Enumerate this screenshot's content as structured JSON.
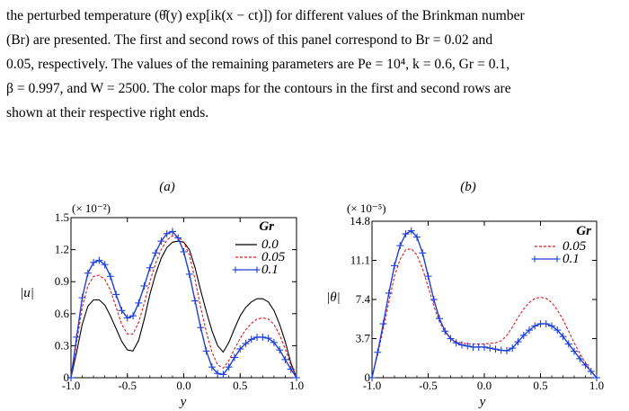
{
  "caption": {
    "lines": [
      "the perturbed temperature (θ̂(y) exp[ik(x − ct)]) for different values of the Brinkman number",
      "(Br) are presented. The first and second rows of this panel correspond to Br = 0.02 and",
      "0.05, respectively. The values of the remaining parameters are Pe = 10⁴, k = 0.6, Gr = 0.1,",
      "β = 0.997, and W = 2500. The color maps for the contours in the first and second rows are",
      "shown at their respective right ends."
    ]
  },
  "panels": {
    "a": {
      "tag": "(a)",
      "ylabel": "|u|",
      "xlabel": "y",
      "multiplier": "(× 10⁻²)",
      "legend_title": "Gr"
    },
    "b": {
      "tag": "(b)",
      "ylabel": "|θ|",
      "xlabel": "y",
      "multiplier": "(× 10⁻⁵)",
      "legend_title": "Gr"
    }
  },
  "chart_data": [
    {
      "type": "line",
      "title": "(a)",
      "xlabel": "y",
      "ylabel": "|u|",
      "y_multiplier": "(× 10⁻²)",
      "xlim": [
        -1.0,
        1.0
      ],
      "ylim": [
        0,
        1.5
      ],
      "xticks": [
        "-1.0",
        "-0.5",
        "0.0",
        "0.5",
        "1.0"
      ],
      "yticks": [
        "0",
        "0.3",
        "0.6",
        "0.9",
        "1.2",
        "1.5"
      ],
      "legend_title": "Gr",
      "legend_position": "top-right",
      "x": [
        -1.0,
        -0.95,
        -0.9,
        -0.85,
        -0.8,
        -0.75,
        -0.7,
        -0.65,
        -0.6,
        -0.55,
        -0.5,
        -0.45,
        -0.4,
        -0.35,
        -0.3,
        -0.25,
        -0.2,
        -0.15,
        -0.1,
        -0.05,
        0.0,
        0.05,
        0.1,
        0.15,
        0.2,
        0.25,
        0.3,
        0.35,
        0.4,
        0.45,
        0.5,
        0.55,
        0.6,
        0.65,
        0.7,
        0.75,
        0.8,
        0.85,
        0.9,
        0.95,
        1.0
      ],
      "series": [
        {
          "name": "0.0",
          "color": "#000000",
          "style": "solid",
          "values": [
            0.0,
            0.24,
            0.5,
            0.67,
            0.73,
            0.73,
            0.68,
            0.58,
            0.46,
            0.34,
            0.26,
            0.25,
            0.35,
            0.55,
            0.78,
            0.97,
            1.12,
            1.22,
            1.27,
            1.28,
            1.27,
            1.2,
            1.03,
            0.82,
            0.62,
            0.44,
            0.3,
            0.24,
            0.33,
            0.46,
            0.58,
            0.66,
            0.71,
            0.74,
            0.74,
            0.71,
            0.63,
            0.5,
            0.34,
            0.14,
            0.0
          ]
        },
        {
          "name": "0.05",
          "color": "#e8141e",
          "style": "dashed",
          "values": [
            0.0,
            0.33,
            0.66,
            0.86,
            0.95,
            0.96,
            0.92,
            0.82,
            0.66,
            0.5,
            0.41,
            0.41,
            0.52,
            0.7,
            0.9,
            1.07,
            1.2,
            1.29,
            1.33,
            1.32,
            1.27,
            1.15,
            0.92,
            0.66,
            0.43,
            0.24,
            0.12,
            0.09,
            0.16,
            0.27,
            0.37,
            0.45,
            0.51,
            0.55,
            0.56,
            0.55,
            0.5,
            0.4,
            0.27,
            0.12,
            0.0
          ]
        },
        {
          "name": "0.1",
          "color": "#1f3fd6",
          "style": "solid-plus",
          "values": [
            0.0,
            0.38,
            0.75,
            0.98,
            1.08,
            1.1,
            1.06,
            0.95,
            0.78,
            0.63,
            0.56,
            0.58,
            0.7,
            0.86,
            1.03,
            1.17,
            1.28,
            1.35,
            1.37,
            1.31,
            1.18,
            0.97,
            0.72,
            0.47,
            0.25,
            0.1,
            0.04,
            0.03,
            0.1,
            0.19,
            0.27,
            0.32,
            0.36,
            0.38,
            0.38,
            0.37,
            0.33,
            0.26,
            0.17,
            0.08,
            0.0
          ]
        }
      ]
    },
    {
      "type": "line",
      "title": "(b)",
      "xlabel": "y",
      "ylabel": "|θ|",
      "y_multiplier": "(× 10⁻⁵)",
      "xlim": [
        -1.0,
        1.0
      ],
      "ylim": [
        0,
        14.8
      ],
      "xticks": [
        "-1.0",
        "-0.5",
        "0.0",
        "0.5",
        "1.0"
      ],
      "yticks": [
        "0",
        "3.7",
        "7.4",
        "11.1",
        "14.8"
      ],
      "legend_title": "Gr",
      "legend_position": "top-right",
      "x": [
        -1.0,
        -0.95,
        -0.9,
        -0.85,
        -0.8,
        -0.75,
        -0.7,
        -0.65,
        -0.6,
        -0.55,
        -0.5,
        -0.45,
        -0.4,
        -0.35,
        -0.3,
        -0.25,
        -0.2,
        -0.15,
        -0.1,
        -0.05,
        0.0,
        0.05,
        0.1,
        0.15,
        0.2,
        0.25,
        0.3,
        0.35,
        0.4,
        0.45,
        0.5,
        0.55,
        0.6,
        0.65,
        0.7,
        0.75,
        0.8,
        0.85,
        0.9,
        0.95,
        1.0
      ],
      "series": [
        {
          "name": "0.05",
          "color": "#e8141e",
          "style": "dashed",
          "values": [
            0.0,
            2.2,
            4.6,
            7.2,
            9.6,
            11.2,
            12.1,
            12.2,
            11.6,
            10.3,
            8.6,
            6.8,
            5.3,
            4.3,
            3.7,
            3.4,
            3.3,
            3.2,
            3.2,
            3.2,
            3.2,
            3.25,
            3.3,
            3.5,
            4.0,
            4.8,
            5.7,
            6.5,
            7.1,
            7.5,
            7.6,
            7.5,
            7.1,
            6.4,
            5.5,
            4.4,
            3.3,
            2.3,
            1.4,
            0.6,
            0.0
          ]
        },
        {
          "name": "0.1",
          "color": "#1f3fd6",
          "style": "solid-plus",
          "values": [
            0.0,
            2.4,
            5.1,
            8.0,
            10.6,
            12.5,
            13.6,
            13.9,
            13.3,
            11.8,
            9.6,
            7.4,
            5.6,
            4.4,
            3.7,
            3.3,
            3.1,
            3.0,
            2.9,
            2.9,
            2.9,
            2.8,
            2.7,
            2.6,
            2.55,
            2.8,
            3.4,
            4.0,
            4.5,
            4.9,
            5.1,
            5.1,
            4.9,
            4.5,
            3.9,
            3.2,
            2.5,
            1.8,
            1.2,
            0.6,
            0.0
          ]
        }
      ]
    }
  ]
}
